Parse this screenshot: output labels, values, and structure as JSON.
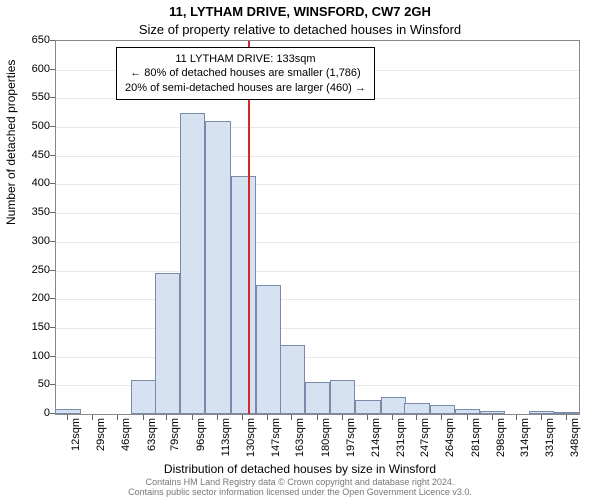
{
  "chart": {
    "type": "histogram",
    "title_line1": "11, LYTHAM DRIVE, WINSFORD, CW7 2GH",
    "title_line2": "Size of property relative to detached houses in Winsford",
    "ylabel": "Number of detached properties",
    "xlabel": "Distribution of detached houses by size in Winsford",
    "title_fontsize": 13,
    "label_fontsize": 12,
    "tick_fontsize": 11,
    "background_color": "#ffffff",
    "grid_color": "#e8e8e8",
    "bar_fill": "#d6e1f2",
    "bar_border": "#7a8aa8",
    "marker_color": "#d62728",
    "marker_x_value": 133,
    "x_min": 4,
    "x_max": 356,
    "ylim": [
      0,
      650
    ],
    "ytick_step": 50,
    "bin_width_data": 17,
    "categories": [
      "12sqm",
      "29sqm",
      "46sqm",
      "63sqm",
      "79sqm",
      "96sqm",
      "113sqm",
      "130sqm",
      "147sqm",
      "163sqm",
      "180sqm",
      "197sqm",
      "214sqm",
      "231sqm",
      "247sqm",
      "264sqm",
      "281sqm",
      "298sqm",
      "314sqm",
      "331sqm",
      "348sqm"
    ],
    "x_tick_values": [
      12,
      29,
      46,
      63,
      79,
      96,
      113,
      130,
      147,
      163,
      180,
      197,
      214,
      231,
      247,
      264,
      281,
      298,
      314,
      331,
      348
    ],
    "values": [
      8,
      0,
      0,
      60,
      245,
      525,
      510,
      415,
      225,
      120,
      55,
      60,
      25,
      30,
      20,
      15,
      8,
      5,
      0,
      5,
      3
    ],
    "annotation": {
      "line1": "11 LYTHAM DRIVE: 133sqm",
      "line2": "← 80% of detached houses are smaller (1,786)",
      "line3": "20% of semi-detached houses are larger (460) →"
    },
    "footer_line1": "Contains HM Land Registry data © Crown copyright and database right 2024.",
    "footer_line2": "Contains public sector information licensed under the Open Government Licence v3.0."
  }
}
